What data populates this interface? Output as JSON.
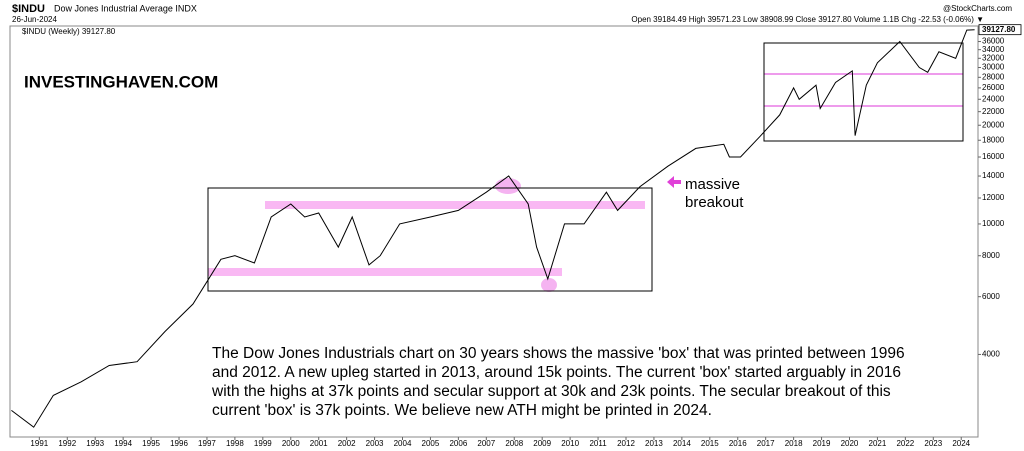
{
  "chart_data": {
    "type": "line",
    "symbol": "$INDU",
    "name": "Dow Jones Industrial Average INDX",
    "date": "26-Jun-2024",
    "source": "@StockCharts.com",
    "quote": "Open 39184.49 High 39571.23 Low 38908.99 Close 39127.80 Volume 1.1B Chg -22.53 (-0.06%) ▼",
    "legend_label": "$INDU (Weekly) 39127.80",
    "watermark": "INVESTINGHAVEN.COM",
    "annotation": [
      "massive",
      "breakout"
    ],
    "commentary": [
      "The Dow Jones Industrials chart on 30 years shows the massive 'box' that was printed between 1996",
      "and 2012. A new upleg started in 2013, around 15k points. The current 'box' started arguably in 2016",
      "with the highs at 37k points and secular support at 30k and 23k points. The secular breakout of this",
      "current 'box' is 37k points. We believe new ATH might be printed in 2024."
    ],
    "log_scale": true,
    "grid": false,
    "series": [
      {
        "name": "$INDU (Weekly)",
        "color": "#000000",
        "x": [
          1990.0,
          1990.8,
          1991.5,
          1992.5,
          1993.5,
          1994.5,
          1995.5,
          1996.5,
          1997.5,
          1998.0,
          1998.7,
          1999.3,
          2000.0,
          2000.5,
          2001.0,
          2001.7,
          2002.2,
          2002.8,
          2003.2,
          2003.9,
          2005.0,
          2006.0,
          2007.0,
          2007.8,
          2008.5,
          2008.8,
          2009.2,
          2009.8,
          2010.5,
          2011.3,
          2011.7,
          2012.5,
          2013.5,
          2014.5,
          2015.5,
          2015.7,
          2016.1,
          2016.8,
          2017.5,
          2018.0,
          2018.2,
          2018.8,
          2018.95,
          2019.5,
          2020.1,
          2020.2,
          2020.6,
          2021.0,
          2021.8,
          2022.5,
          2022.8,
          2023.2,
          2023.8,
          2024.2,
          2024.48
        ],
        "values": [
          2700,
          2400,
          3000,
          3300,
          3700,
          3800,
          4700,
          5700,
          7800,
          8000,
          7600,
          10500,
          11500,
          10500,
          10800,
          8500,
          10500,
          7500,
          8000,
          10000,
          10500,
          11000,
          12500,
          14000,
          11500,
          8500,
          6800,
          10000,
          10000,
          12500,
          11000,
          13000,
          15000,
          17000,
          17500,
          16000,
          16000,
          18500,
          21500,
          26000,
          24000,
          26500,
          22500,
          27000,
          29300,
          18600,
          26500,
          31000,
          36000,
          30000,
          29000,
          33500,
          32000,
          39000,
          39127.8
        ]
      }
    ],
    "last_value_label": "39127.80",
    "xlim": [
      1989.95,
      2024.6
    ],
    "xticks": [
      1991,
      1992,
      1993,
      1994,
      1995,
      1996,
      1997,
      1998,
      1999,
      2000,
      2001,
      2002,
      2003,
      2004,
      2005,
      2006,
      2007,
      2008,
      2009,
      2010,
      2011,
      2012,
      2013,
      2014,
      2015,
      2016,
      2017,
      2018,
      2019,
      2020,
      2021,
      2022,
      2023,
      2024
    ],
    "ylim": [
      2240,
      40150
    ],
    "yticks": [
      4000,
      6000,
      8000,
      10000,
      12000,
      14000,
      16000,
      18000,
      20000,
      22000,
      24000,
      26000,
      28000,
      30000,
      32000,
      34000,
      36000
    ]
  }
}
